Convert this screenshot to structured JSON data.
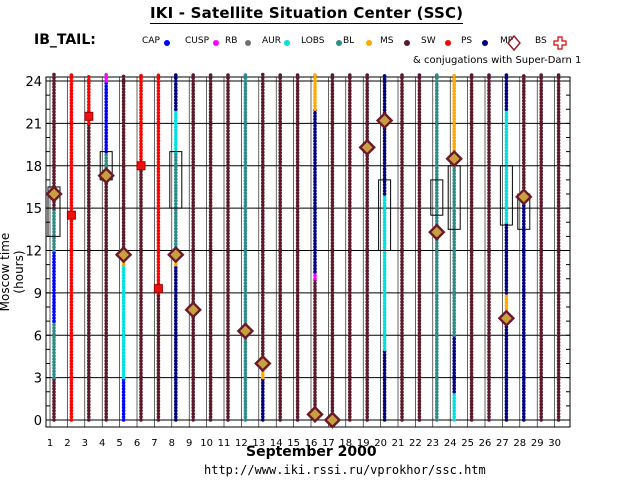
{
  "header": {
    "title": "IKI - Satellite Situation Center (SSC)",
    "dataset": "IB_TAIL:",
    "conjugation_note": "& conjugations with Super-Darn 1"
  },
  "footer": {
    "month_label": "September    2000",
    "url": "http://www.iki.rssi.ru/vprokhor/ssc.htm"
  },
  "colors": {
    "CAP": "#0000ff",
    "CUSP": "#ff00ff",
    "RB": "#707070",
    "AUR": "#00e0e0",
    "LOBS": "#2e8b8b",
    "BL": "#ffaa00",
    "MS": "#5a1a2a",
    "SW": "#ff0000",
    "PS": "#000080",
    "MP": "#8b1a2a",
    "BS": "#dd0000"
  },
  "legend": [
    {
      "key": "CAP",
      "label": "CAP"
    },
    {
      "key": "CUSP",
      "label": "CUSP"
    },
    {
      "key": "RB",
      "label": "RB"
    },
    {
      "key": "AUR",
      "label": "AUR"
    },
    {
      "key": "LOBS",
      "label": "LOBS"
    },
    {
      "key": "BL",
      "label": "BL"
    },
    {
      "key": "MS",
      "label": "MS"
    },
    {
      "key": "SW",
      "label": "SW"
    },
    {
      "key": "PS",
      "label": "PS"
    },
    {
      "key": "MP",
      "label": "MP"
    },
    {
      "key": "BS",
      "label": "BS"
    }
  ],
  "chart_data": {
    "type": "scatter",
    "title": "IKI - Satellite Situation Center (SSC)",
    "xlabel": "September    2000",
    "ylabel": "Moscow time (hours)",
    "x": [
      1,
      2,
      3,
      4,
      5,
      6,
      7,
      8,
      9,
      10,
      11,
      12,
      13,
      14,
      15,
      16,
      17,
      18,
      19,
      20,
      21,
      22,
      23,
      24,
      25,
      26,
      27,
      28,
      29,
      30
    ],
    "y_ticks": [
      0,
      3,
      6,
      9,
      12,
      15,
      18,
      21,
      24
    ],
    "ylim": [
      0,
      24
    ],
    "xlim": [
      1,
      30
    ],
    "grid": true,
    "series": [
      {
        "day": 1,
        "segments": [
          [
            "MS",
            0,
            3
          ],
          [
            "LOBS",
            3,
            7
          ],
          [
            "CAP",
            7,
            12
          ],
          [
            "LOBS",
            12,
            15
          ],
          [
            "MS",
            15,
            24.5
          ]
        ]
      },
      {
        "day": 2,
        "segments": [
          [
            "SW",
            0,
            24.5
          ]
        ]
      },
      {
        "day": 3,
        "segments": [
          [
            "MS",
            0,
            21
          ],
          [
            "SW",
            21,
            24.5
          ]
        ]
      },
      {
        "day": 4,
        "segments": [
          [
            "MS",
            0,
            17
          ],
          [
            "LOBS",
            17,
            19
          ],
          [
            "CAP",
            19,
            24
          ],
          [
            "CUSP",
            24,
            24.5
          ]
        ]
      },
      {
        "day": 5,
        "segments": [
          [
            "CAP",
            0,
            3
          ],
          [
            "AUR",
            3,
            11
          ],
          [
            "BL",
            11,
            12
          ],
          [
            "MS",
            12,
            24.5
          ]
        ]
      },
      {
        "day": 6,
        "segments": [
          [
            "MS",
            0,
            18
          ],
          [
            "SW",
            18,
            24.5
          ]
        ]
      },
      {
        "day": 7,
        "segments": [
          [
            "MS",
            0,
            9
          ],
          [
            "SW",
            9,
            24.5
          ]
        ]
      },
      {
        "day": 8,
        "segments": [
          [
            "PS",
            0,
            11
          ],
          [
            "BL",
            11,
            12
          ],
          [
            "LOBS",
            12,
            19
          ],
          [
            "AUR",
            19,
            22
          ],
          [
            "PS",
            22,
            24.5
          ]
        ]
      },
      {
        "day": 9,
        "segments": [
          [
            "MS",
            0,
            24.5
          ]
        ]
      },
      {
        "day": 10,
        "segments": [
          [
            "MS",
            0,
            24.5
          ]
        ]
      },
      {
        "day": 11,
        "segments": [
          [
            "MS",
            0,
            24.5
          ]
        ]
      },
      {
        "day": 12,
        "segments": [
          [
            "LOBS",
            0,
            24.5
          ]
        ]
      },
      {
        "day": 13,
        "segments": [
          [
            "PS",
            0,
            3
          ],
          [
            "BL",
            3,
            4
          ],
          [
            "MS",
            4,
            24.5
          ]
        ]
      },
      {
        "day": 14,
        "segments": [
          [
            "MS",
            0,
            24.5
          ]
        ]
      },
      {
        "day": 15,
        "segments": [
          [
            "MS",
            0,
            24.5
          ]
        ]
      },
      {
        "day": 16,
        "segments": [
          [
            "MS",
            0,
            10
          ],
          [
            "CUSP",
            10,
            10.5
          ],
          [
            "PS",
            10.5,
            22
          ],
          [
            "BL",
            22,
            24.5
          ]
        ]
      },
      {
        "day": 17,
        "segments": [
          [
            "MS",
            0,
            24.5
          ]
        ]
      },
      {
        "day": 18,
        "segments": [
          [
            "MS",
            0,
            24.5
          ]
        ]
      },
      {
        "day": 19,
        "segments": [
          [
            "MS",
            0,
            24.5
          ]
        ]
      },
      {
        "day": 20,
        "segments": [
          [
            "PS",
            0,
            5
          ],
          [
            "AUR",
            5,
            16
          ],
          [
            "PS",
            16,
            24.5
          ]
        ]
      },
      {
        "day": 21,
        "segments": [
          [
            "MS",
            0,
            24.5
          ]
        ]
      },
      {
        "day": 22,
        "segments": [
          [
            "MS",
            0,
            24.5
          ]
        ]
      },
      {
        "day": 23,
        "segments": [
          [
            "LOBS",
            0,
            24.5
          ]
        ]
      },
      {
        "day": 24,
        "segments": [
          [
            "AUR",
            0,
            2
          ],
          [
            "PS",
            2,
            6
          ],
          [
            "LOBS",
            6,
            18
          ],
          [
            "BL",
            18,
            24.5
          ]
        ]
      },
      {
        "day": 25,
        "segments": [
          [
            "MS",
            0,
            24.5
          ]
        ]
      },
      {
        "day": 26,
        "segments": [
          [
            "MS",
            0,
            24.5
          ]
        ]
      },
      {
        "day": 27,
        "segments": [
          [
            "PS",
            0,
            7
          ],
          [
            "BL",
            7,
            9
          ],
          [
            "PS",
            9,
            14
          ],
          [
            "AUR",
            14,
            22
          ],
          [
            "PS",
            22,
            24.5
          ]
        ]
      },
      {
        "day": 28,
        "segments": [
          [
            "PS",
            0,
            16
          ],
          [
            "MS",
            16,
            24.5
          ]
        ]
      },
      {
        "day": 29,
        "segments": [
          [
            "MS",
            0,
            24.5
          ]
        ]
      },
      {
        "day": 30,
        "segments": [
          [
            "MS",
            0,
            24.5
          ]
        ]
      }
    ],
    "bow_shock_crossings": [
      {
        "day": 1,
        "hour": 16
      },
      {
        "day": 4,
        "hour": 17.3
      },
      {
        "day": 5,
        "hour": 11.7
      },
      {
        "day": 8,
        "hour": 11.7
      },
      {
        "day": 9,
        "hour": 7.8
      },
      {
        "day": 12,
        "hour": 6.3
      },
      {
        "day": 13,
        "hour": 4
      },
      {
        "day": 16,
        "hour": 0.4
      },
      {
        "day": 17,
        "hour": 0
      },
      {
        "day": 19,
        "hour": 19.3
      },
      {
        "day": 20,
        "hour": 21.2
      },
      {
        "day": 23,
        "hour": 13.3
      },
      {
        "day": 24,
        "hour": 18.5
      },
      {
        "day": 27,
        "hour": 7.2
      },
      {
        "day": 28,
        "hour": 15.8
      }
    ],
    "superdarn_crossings": [
      {
        "day": 2,
        "hour": 14.5
      },
      {
        "day": 3,
        "hour": 21.5
      },
      {
        "day": 6,
        "hour": 18
      },
      {
        "day": 7,
        "hour": 9.3
      }
    ],
    "conjugation_boxes": [
      {
        "day": 1,
        "from": 13,
        "to": 16.5
      },
      {
        "day": 4,
        "from": 17,
        "to": 19
      },
      {
        "day": 8,
        "from": 15,
        "to": 19
      },
      {
        "day": 20,
        "from": 12,
        "to": 17
      },
      {
        "day": 23,
        "from": 14.5,
        "to": 17
      },
      {
        "day": 24,
        "from": 13.5,
        "to": 18
      },
      {
        "day": 27,
        "from": 13.8,
        "to": 18
      },
      {
        "day": 28,
        "from": 13.5,
        "to": 16
      }
    ]
  }
}
